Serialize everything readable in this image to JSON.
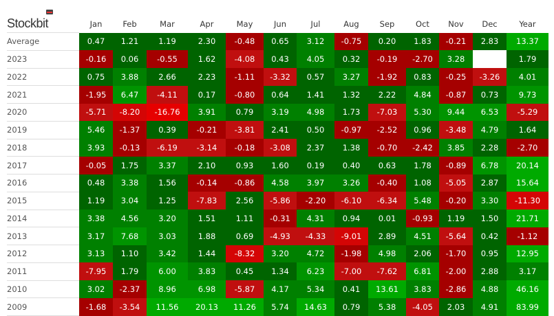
{
  "brand": "Stockbit",
  "chart_data": {
    "type": "heatmap",
    "columns": [
      "Jan",
      "Feb",
      "Mar",
      "Apr",
      "May",
      "Jun",
      "Jul",
      "Aug",
      "Sep",
      "Oct",
      "Nov",
      "Dec",
      "Year"
    ],
    "rows": [
      {
        "label": "Average",
        "values": [
          "0.47",
          "1.21",
          "1.19",
          "2.30",
          "-0.48",
          "0.65",
          "3.12",
          "-0.75",
          "0.20",
          "1.83",
          "-0.21",
          "2.83",
          "13.37"
        ]
      },
      {
        "label": "2023",
        "values": [
          "-0.16",
          "0.06",
          "-0.55",
          "1.62",
          "-4.08",
          "0.43",
          "4.05",
          "0.32",
          "-0.19",
          "-2.70",
          "3.28",
          "",
          "1.79"
        ]
      },
      {
        "label": "2022",
        "values": [
          "0.75",
          "3.88",
          "2.66",
          "2.23",
          "-1.11",
          "-3.32",
          "0.57",
          "3.27",
          "-1.92",
          "0.83",
          "-0.25",
          "-3.26",
          "4.01"
        ]
      },
      {
        "label": "2021",
        "values": [
          "-1.95",
          "6.47",
          "-4.11",
          "0.17",
          "-0.80",
          "0.64",
          "1.41",
          "1.32",
          "2.22",
          "4.84",
          "-0.87",
          "0.73",
          "9.73"
        ]
      },
      {
        "label": "2020",
        "values": [
          "-5.71",
          "-8.20",
          "-16.76",
          "3.91",
          "0.79",
          "3.19",
          "4.98",
          "1.73",
          "-7.03",
          "5.30",
          "9.44",
          "6.53",
          "-5.29"
        ]
      },
      {
        "label": "2019",
        "values": [
          "5.46",
          "-1.37",
          "0.39",
          "-0.21",
          "-3.81",
          "2.41",
          "0.50",
          "-0.97",
          "-2.52",
          "0.96",
          "-3.48",
          "4.79",
          "1.64"
        ]
      },
      {
        "label": "2018",
        "values": [
          "3.93",
          "-0.13",
          "-6.19",
          "-3.14",
          "-0.18",
          "-3.08",
          "2.37",
          "1.38",
          "-0.70",
          "-2.42",
          "3.85",
          "2.28",
          "-2.70"
        ]
      },
      {
        "label": "2017",
        "values": [
          "-0.05",
          "1.75",
          "3.37",
          "2.10",
          "0.93",
          "1.60",
          "0.19",
          "0.40",
          "0.63",
          "1.78",
          "-0.89",
          "6.78",
          "20.14"
        ]
      },
      {
        "label": "2016",
        "values": [
          "0.48",
          "3.38",
          "1.56",
          "-0.14",
          "-0.86",
          "4.58",
          "3.97",
          "3.26",
          "-0.40",
          "1.08",
          "-5.05",
          "2.87",
          "15.64"
        ]
      },
      {
        "label": "2015",
        "values": [
          "1.19",
          "3.04",
          "1.25",
          "-7.83",
          "2.56",
          "-5.86",
          "-2.20",
          "-6.10",
          "-6.34",
          "5.48",
          "-0.20",
          "3.30",
          "-11.30"
        ]
      },
      {
        "label": "2014",
        "values": [
          "3.38",
          "4.56",
          "3.20",
          "1.51",
          "1.11",
          "-0.31",
          "4.31",
          "0.94",
          "0.01",
          "-0.93",
          "1.19",
          "1.50",
          "21.71"
        ]
      },
      {
        "label": "2013",
        "values": [
          "3.17",
          "7.68",
          "3.03",
          "1.88",
          "0.69",
          "-4.93",
          "-4.33",
          "-9.01",
          "2.89",
          "4.51",
          "-5.64",
          "0.42",
          "-1.12"
        ]
      },
      {
        "label": "2012",
        "values": [
          "3.13",
          "1.10",
          "3.42",
          "1.44",
          "-8.32",
          "3.20",
          "4.72",
          "-1.98",
          "4.98",
          "2.06",
          "-1.70",
          "0.95",
          "12.95"
        ]
      },
      {
        "label": "2011",
        "values": [
          "-7.95",
          "1.79",
          "6.00",
          "3.83",
          "0.45",
          "1.34",
          "6.23",
          "-7.00",
          "-7.62",
          "6.81",
          "-2.00",
          "2.88",
          "3.17"
        ]
      },
      {
        "label": "2010",
        "values": [
          "3.02",
          "-2.37",
          "8.96",
          "6.98",
          "-5.87",
          "4.17",
          "5.34",
          "0.41",
          "13.61",
          "3.83",
          "-2.86",
          "4.88",
          "46.16"
        ]
      },
      {
        "label": "2009",
        "values": [
          "-1.68",
          "-3.54",
          "11.56",
          "20.13",
          "11.26",
          "5.74",
          "14.63",
          "0.79",
          "5.38",
          "-4.05",
          "2.03",
          "4.91",
          "83.99"
        ]
      }
    ],
    "colors": {
      "pos_low": "#006400",
      "pos_mid": "#008000",
      "pos_high": "#009400",
      "pos_max": "#00aa00",
      "neg_low": "#a50000",
      "neg_mid": "#c00f0f",
      "neg_high": "#d40505",
      "neg_max": "#e60000",
      "empty": "#ffffff"
    }
  }
}
